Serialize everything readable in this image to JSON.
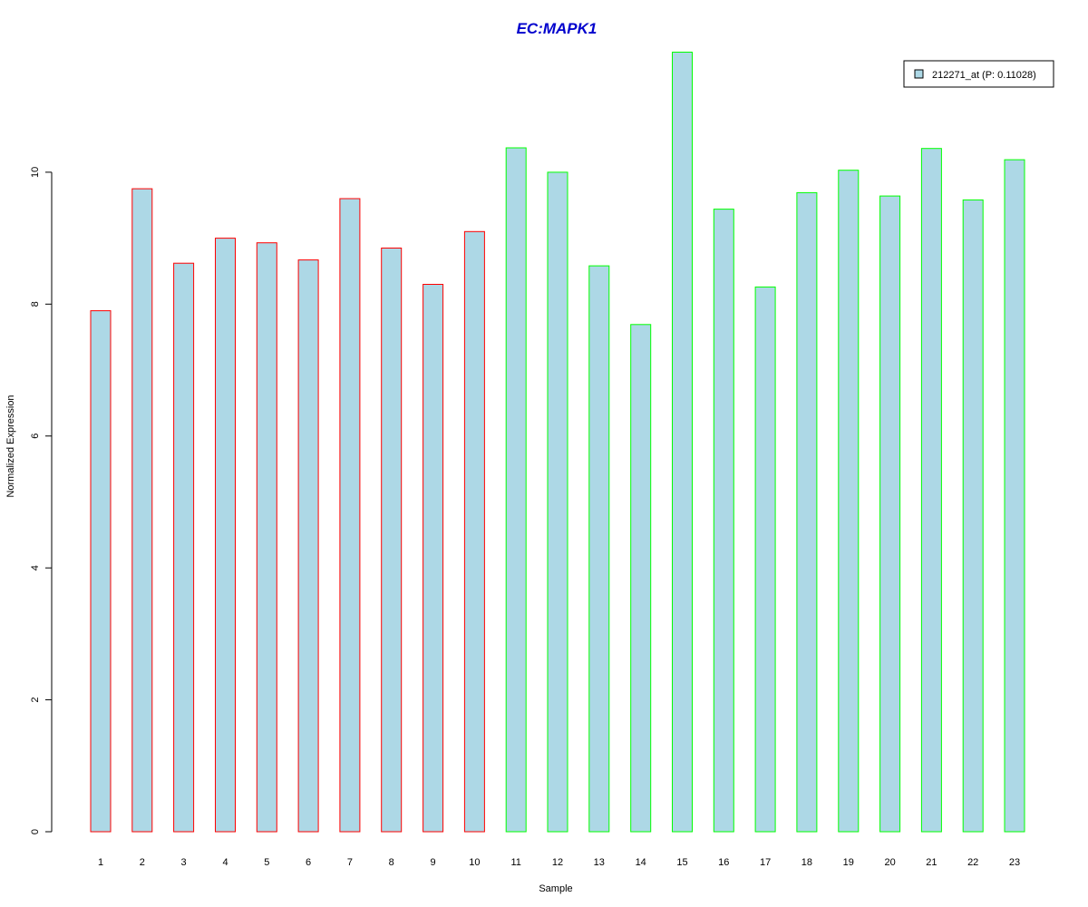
{
  "chart_data": {
    "type": "bar",
    "title": "EC:MAPK1",
    "xlabel": "Sample",
    "ylabel": "Normalized Expression",
    "ylim": [
      0,
      11.8
    ],
    "yticks": [
      0,
      2,
      4,
      6,
      8,
      10
    ],
    "categories": [
      "1",
      "2",
      "3",
      "4",
      "5",
      "6",
      "7",
      "8",
      "9",
      "10",
      "11",
      "12",
      "13",
      "14",
      "15",
      "16",
      "17",
      "18",
      "19",
      "20",
      "21",
      "22",
      "23"
    ],
    "series": [
      {
        "name": "212271_at (P: 0.11028)",
        "values": [
          7.9,
          9.75,
          8.62,
          9.0,
          8.93,
          8.67,
          9.6,
          8.85,
          8.3,
          9.1,
          10.37,
          10.0,
          8.58,
          7.69,
          11.82,
          9.44,
          8.26,
          9.69,
          10.03,
          9.64,
          10.36,
          9.58,
          10.19
        ]
      }
    ],
    "bar_fill": "#add8e6",
    "group_border_colors": [
      "#ff0000",
      "#ff0000",
      "#ff0000",
      "#ff0000",
      "#ff0000",
      "#ff0000",
      "#ff0000",
      "#ff0000",
      "#ff0000",
      "#ff0000",
      "#00ff00",
      "#00ff00",
      "#00ff00",
      "#00ff00",
      "#00ff00",
      "#00ff00",
      "#00ff00",
      "#00ff00",
      "#00ff00",
      "#00ff00",
      "#00ff00",
      "#00ff00",
      "#00ff00"
    ],
    "title_color": "#0000cd",
    "legend_position": "top-right",
    "grid": false
  }
}
